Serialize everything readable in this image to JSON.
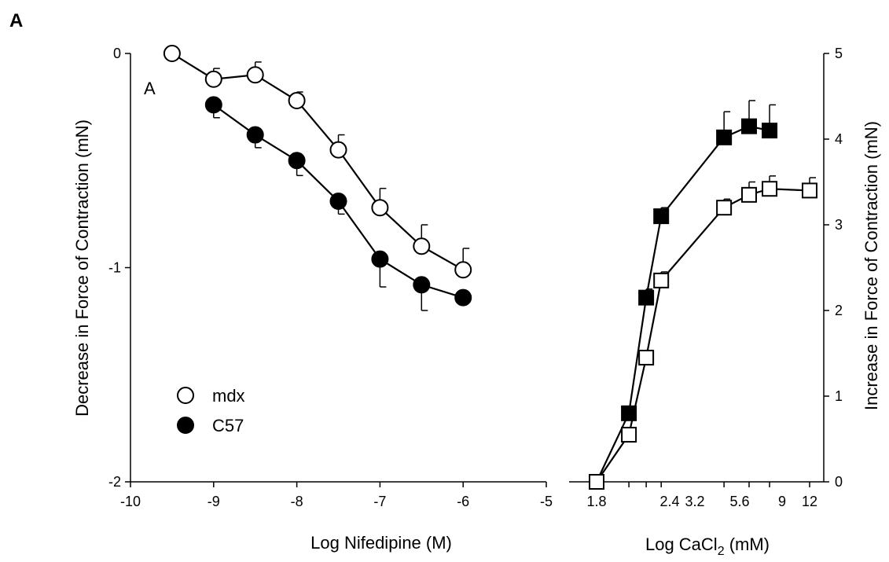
{
  "figure_label": "A",
  "chart_data": [
    {
      "type": "line",
      "panel_label": "A",
      "xlabel": "Log Nifedipine (M)",
      "ylabel": "Decrease in Force of Contraction (mN)",
      "xlim": [
        -10,
        -5
      ],
      "ylim": [
        -2,
        0
      ],
      "x_ticks": [
        -10,
        -9,
        -8,
        -7,
        -6,
        -5
      ],
      "x_tick_labels": [
        "-10",
        "-9",
        "-8",
        "-7",
        "-6",
        "-5"
      ],
      "y_ticks": [
        0,
        -1,
        -2
      ],
      "y_tick_labels": [
        "0",
        "-1",
        "-2"
      ],
      "legend": {
        "placement": "bottom-left",
        "entries": [
          "mdx",
          "C57"
        ]
      },
      "series": [
        {
          "name": "mdx",
          "marker": "open-circle",
          "x": [
            -9.5,
            -9,
            -8.5,
            -8,
            -7.5,
            -7,
            -6.5,
            -6
          ],
          "y": [
            0,
            -0.12,
            -0.1,
            -0.22,
            -0.45,
            -0.72,
            -0.9,
            -1.01
          ],
          "err": [
            0,
            0.05,
            0.06,
            0.04,
            0.07,
            0.09,
            0.1,
            0.1
          ]
        },
        {
          "name": "C57",
          "marker": "filled-circle",
          "x": [
            -9,
            -8.5,
            -8,
            -7.5,
            -7,
            -6.5,
            -6
          ],
          "y": [
            -0.24,
            -0.38,
            -0.5,
            -0.69,
            -0.96,
            -1.08,
            -1.14
          ],
          "err": [
            0.06,
            0.06,
            0.07,
            0.06,
            0.13,
            0.12,
            0
          ]
        }
      ]
    },
    {
      "type": "line",
      "xlabel": "Log CaCl",
      "xlabel_sub": "2",
      "xlabel_unit": " (mM)",
      "ylabel": "Increase in Force of Contraction (mN)",
      "x_scale": "log",
      "ylim": [
        0,
        5
      ],
      "x_tick_labels": [
        "1.8",
        "2.4",
        "3.2",
        "5.6",
        "9",
        "12"
      ],
      "y_ticks": [
        0,
        1,
        2,
        3,
        4,
        5
      ],
      "y_tick_labels": [
        "0",
        "1",
        "2",
        "3",
        "4",
        "5"
      ],
      "series": [
        {
          "marker": "filled-square",
          "x": [
            1.8,
            2.4,
            2.8,
            3.2,
            5.6,
            7,
            8.4
          ],
          "y": [
            0,
            0.8,
            2.15,
            3.1,
            4.02,
            4.15,
            4.1
          ],
          "err": [
            0,
            0,
            0.1,
            0.1,
            0.3,
            0.3,
            0.3
          ]
        },
        {
          "marker": "open-square",
          "x": [
            1.8,
            2.4,
            2.8,
            3.2,
            5.6,
            7,
            8.4,
            12
          ],
          "y": [
            0,
            0.55,
            1.45,
            2.35,
            3.2,
            3.35,
            3.42,
            3.4
          ],
          "err": [
            0,
            0,
            0,
            0.1,
            0.1,
            0.15,
            0.15,
            0.15
          ]
        }
      ]
    }
  ]
}
